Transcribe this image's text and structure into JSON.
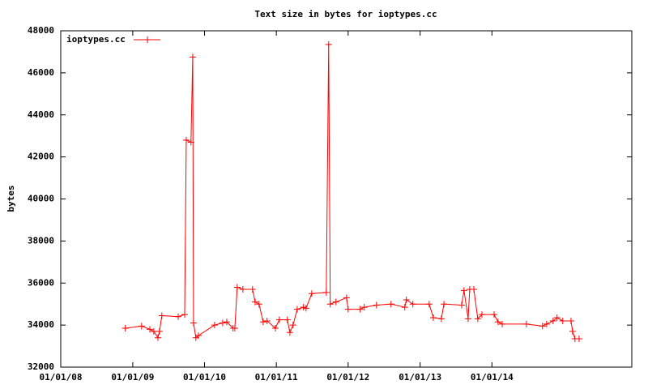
{
  "chart_data": {
    "type": "line",
    "title": "Text size in bytes for ioptypes.cc",
    "y_label": "bytes",
    "xlim": [
      "2008-01-01",
      "2015-12-13"
    ],
    "xticks": [
      {
        "value": "2008-01-01",
        "label": "01/01/08"
      },
      {
        "value": "2009-01-01",
        "label": "01/01/09"
      },
      {
        "value": "2010-01-01",
        "label": "01/01/10"
      },
      {
        "value": "2011-01-01",
        "label": "01/01/11"
      },
      {
        "value": "2012-01-01",
        "label": "01/01/12"
      },
      {
        "value": "2013-01-01",
        "label": "01/01/13"
      },
      {
        "value": "2014-01-01",
        "label": "01/01/14"
      }
    ],
    "ylim": [
      32000,
      48000
    ],
    "yticks": [
      32000,
      34000,
      36000,
      38000,
      40000,
      42000,
      44000,
      46000,
      48000
    ],
    "legend": "top-left",
    "x": [
      "2008-11-24",
      "2009-02-15",
      "2009-03-29",
      "2009-04-18",
      "2009-05-09",
      "2009-05-17",
      "2009-05-29",
      "2009-08-20",
      "2009-09-22",
      "2009-09-30",
      "2009-10-24",
      "2009-11-02",
      "2009-11-06",
      "2009-11-18",
      "2009-12-01",
      "2010-02-21",
      "2010-04-03",
      "2010-04-24",
      "2010-05-26",
      "2010-06-04",
      "2010-06-16",
      "2010-07-15",
      "2010-09-02",
      "2010-09-15",
      "2010-10-05",
      "2010-10-26",
      "2010-11-15",
      "2010-12-27",
      "2011-01-16",
      "2011-02-26",
      "2011-03-11",
      "2011-03-27",
      "2011-04-17",
      "2011-05-19",
      "2011-06-01",
      "2011-06-30",
      "2011-09-12",
      "2011-09-24",
      "2011-10-02",
      "2011-10-31",
      "2011-12-24",
      "2012-01-01",
      "2012-03-02",
      "2012-03-23",
      "2012-05-24",
      "2012-08-06",
      "2012-10-15",
      "2012-10-23",
      "2012-11-25",
      "2013-02-16",
      "2013-03-09",
      "2013-04-19",
      "2013-05-02",
      "2013-07-31",
      "2013-08-12",
      "2013-09-02",
      "2013-09-10",
      "2013-10-01",
      "2013-10-21",
      "2013-11-11",
      "2014-01-12",
      "2014-02-01",
      "2014-02-22",
      "2014-06-25",
      "2014-09-15",
      "2014-10-06",
      "2014-11-08",
      "2014-11-28",
      "2014-12-27",
      "2015-02-07",
      "2015-02-15",
      "2015-02-27",
      "2015-03-20"
    ],
    "series": [
      {
        "name": "ioptypes.cc",
        "color": "#ff0000",
        "values": [
          33850,
          33950,
          33800,
          33700,
          33400,
          33700,
          34450,
          34400,
          34500,
          42800,
          42700,
          46750,
          34100,
          33400,
          33500,
          34000,
          34100,
          34150,
          33850,
          33850,
          35800,
          35700,
          35700,
          35100,
          35000,
          34150,
          34200,
          33850,
          34250,
          34250,
          33650,
          34000,
          34750,
          34850,
          34800,
          35500,
          35550,
          47350,
          35000,
          35100,
          35300,
          34750,
          34750,
          34850,
          34950,
          35000,
          34850,
          35200,
          35000,
          35000,
          34350,
          34300,
          35000,
          34950,
          35650,
          34300,
          35700,
          35700,
          34300,
          34500,
          34500,
          34150,
          34050,
          34050,
          33950,
          34050,
          34200,
          34350,
          34200,
          34200,
          33700,
          33350,
          33350
        ]
      }
    ]
  }
}
